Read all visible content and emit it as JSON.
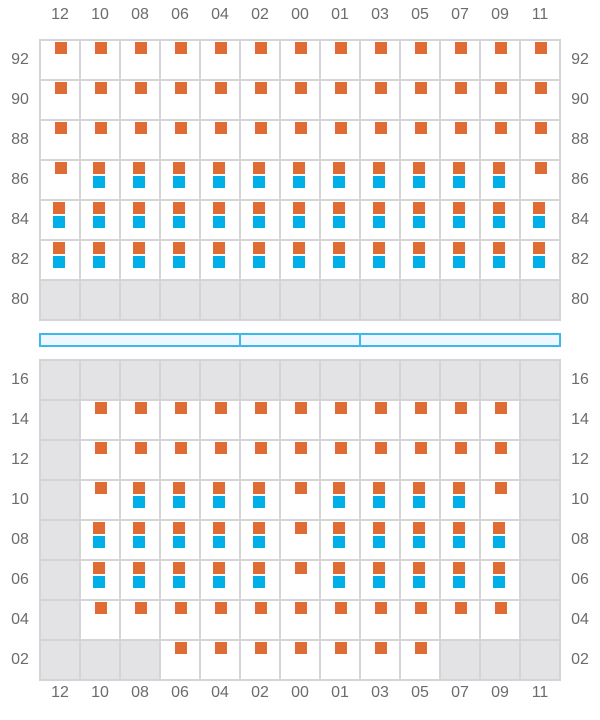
{
  "columns": [
    "12",
    "10",
    "08",
    "06",
    "04",
    "02",
    "00",
    "01",
    "03",
    "05",
    "07",
    "09",
    "11"
  ],
  "legend_codes": {
    "O": "orange-only",
    "B": "orange-and-blue",
    "X": "unavailable"
  },
  "colors": {
    "orange": "#e06c35",
    "blue": "#00aee8",
    "unavailable": "#e3e3e5",
    "grid": "#d4d4d6",
    "divider": "#3ab8f0"
  },
  "sections": [
    {
      "name": "upper",
      "rows": [
        {
          "label": "92",
          "cells": "OOOOOOOOOOOOO"
        },
        {
          "label": "90",
          "cells": "OOOOOOOOOOOOO"
        },
        {
          "label": "88",
          "cells": "OOOOOOOOOOOOO"
        },
        {
          "label": "86",
          "cells": "OBBBBBBBBBBBO"
        },
        {
          "label": "84",
          "cells": "BBBBBBBBBBBBB"
        },
        {
          "label": "82",
          "cells": "BBBBBBBBBBBBB"
        },
        {
          "label": "80",
          "cells": "XXXXXXXXXXXXX"
        }
      ]
    },
    {
      "name": "lower",
      "rows": [
        {
          "label": "16",
          "cells": "XXXXXXXXXXXXX"
        },
        {
          "label": "14",
          "cells": "XOOOOOOOOOOOX"
        },
        {
          "label": "12",
          "cells": "XOOOOOOOOOOOX"
        },
        {
          "label": "10",
          "cells": "XOBBBBOBBBBOX"
        },
        {
          "label": "08",
          "cells": "XBBBBBOBBBBBX"
        },
        {
          "label": "06",
          "cells": "XBBBBBOBBBBBX"
        },
        {
          "label": "04",
          "cells": "XOOOOOOOOOOOX"
        },
        {
          "label": "02",
          "cells": "XXXOOOOOOOXXX"
        }
      ]
    }
  ]
}
